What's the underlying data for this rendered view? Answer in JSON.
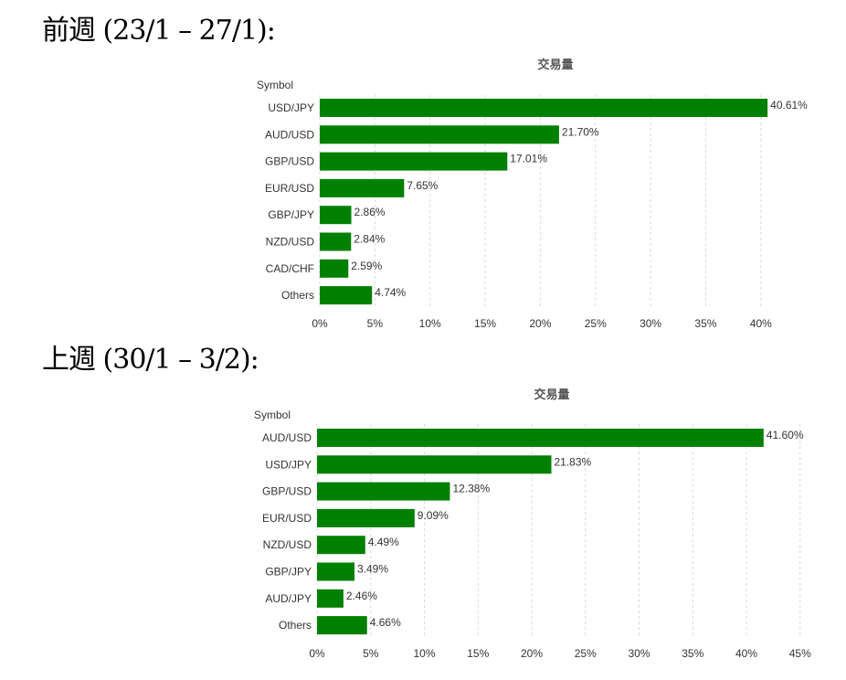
{
  "sections": [
    {
      "heading": "前週 (23/1 – 27/1):"
    },
    {
      "heading": "上週 (30/1 – 3/2):"
    }
  ],
  "chart_data": [
    {
      "type": "bar",
      "orientation": "horizontal",
      "title": "交易量",
      "ylabel": "Symbol",
      "categories": [
        "USD/JPY",
        "AUD/USD",
        "GBP/USD",
        "EUR/USD",
        "GBP/JPY",
        "NZD/USD",
        "CAD/CHF",
        "Others"
      ],
      "values": [
        40.61,
        21.7,
        17.01,
        7.65,
        2.86,
        2.84,
        2.59,
        4.74
      ],
      "value_labels": [
        "40.61%",
        "21.70%",
        "17.01%",
        "7.65%",
        "2.86%",
        "2.84%",
        "2.59%",
        "4.74%"
      ],
      "xlim": [
        0,
        40
      ],
      "xticks": [
        "0%",
        "5%",
        "10%",
        "15%",
        "20%",
        "25%",
        "30%",
        "35%",
        "40%"
      ],
      "grid": true,
      "bar_color": "#008000"
    },
    {
      "type": "bar",
      "orientation": "horizontal",
      "title": "交易量",
      "ylabel": "Symbol",
      "categories": [
        "AUD/USD",
        "USD/JPY",
        "GBP/USD",
        "EUR/USD",
        "NZD/USD",
        "GBP/JPY",
        "AUD/JPY",
        "Others"
      ],
      "values": [
        41.6,
        21.83,
        12.38,
        9.09,
        4.49,
        3.49,
        2.46,
        4.66
      ],
      "value_labels": [
        "41.60%",
        "21.83%",
        "12.38%",
        "9.09%",
        "4.49%",
        "3.49%",
        "2.46%",
        "4.66%"
      ],
      "xlim": [
        0,
        45
      ],
      "xticks": [
        "0%",
        "5%",
        "10%",
        "15%",
        "20%",
        "25%",
        "30%",
        "35%",
        "40%",
        "45%"
      ],
      "grid": true,
      "bar_color": "#008000"
    }
  ]
}
